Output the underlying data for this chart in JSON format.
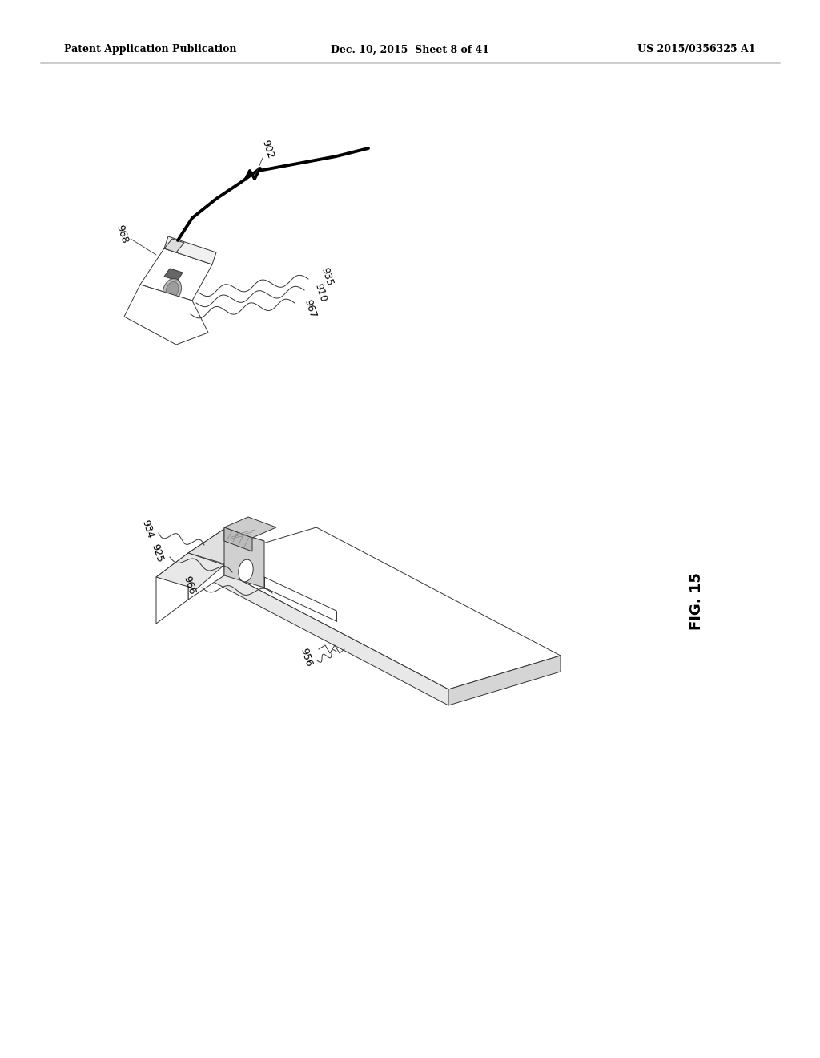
{
  "bg_color": "#ffffff",
  "header_left": "Patent Application Publication",
  "header_mid": "Dec. 10, 2015  Sheet 8 of 41",
  "header_right": "US 2015/0356325 A1",
  "fig_label": "FIG. 15",
  "line_color": "#333333",
  "lw_thin": 0.7,
  "lw_med": 1.2,
  "lw_thick": 2.8
}
